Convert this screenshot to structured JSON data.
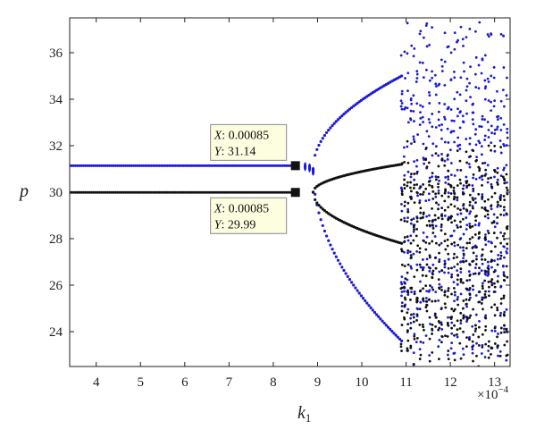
{
  "chart_data": {
    "type": "scatter",
    "title": "",
    "xlabel": "k",
    "xlabel_subscript": "1",
    "ylabel": "p",
    "x_multiplier": "×10",
    "x_multiplier_exponent": "−4",
    "xlim": [
      3.4,
      13.35
    ],
    "ylim": [
      22.5,
      37.5
    ],
    "x_ticks": [
      "4",
      "5",
      "6",
      "7",
      "8",
      "9",
      "10",
      "11",
      "12",
      "13"
    ],
    "y_ticks": [
      "24",
      "26",
      "28",
      "30",
      "32",
      "34",
      "36"
    ],
    "grid": false,
    "legend": "none",
    "series": [
      {
        "color": "#1a1ad6",
        "segments": [
          {
            "kind": "fixed",
            "x0": 3.4,
            "x1": 8.5,
            "y": 31.14
          },
          {
            "kind": "fork",
            "x0": 8.9,
            "x1": 10.9,
            "y0": 31.0,
            "yTop": 35.0,
            "yBottom": 23.6
          },
          {
            "kind": "chaos",
            "x0": 10.9,
            "x1": 13.35,
            "yMin": 22.5,
            "yMax": 37.5
          }
        ]
      },
      {
        "color": "#111111",
        "segments": [
          {
            "kind": "fixed",
            "x0": 3.4,
            "x1": 8.5,
            "y": 29.99
          },
          {
            "kind": "fork",
            "x0": 8.9,
            "x1": 10.9,
            "y0": 30.0,
            "yTop": 31.2,
            "yBottom": 27.8
          },
          {
            "kind": "chaos",
            "x0": 10.9,
            "x1": 13.35,
            "yMin": 22.5,
            "yMax": 32.2
          }
        ]
      }
    ],
    "annotations": [
      {
        "x_label": "X",
        "x_value": "0.00085",
        "y_label": "Y",
        "y_value": "31.14",
        "x": 8.5,
        "y": 31.14,
        "placement": "above"
      },
      {
        "x_label": "X",
        "x_value": "0.00085",
        "y_label": "Y",
        "y_value": "29.99",
        "x": 8.5,
        "y": 29.99,
        "placement": "below"
      }
    ]
  }
}
